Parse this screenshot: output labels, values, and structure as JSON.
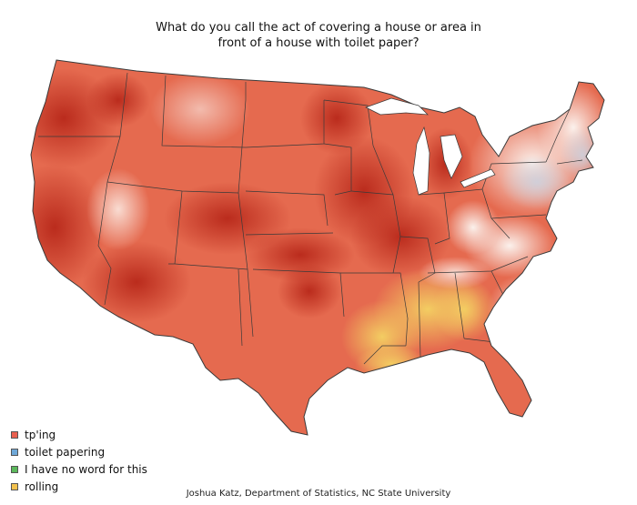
{
  "title": {
    "line1": "What do you call the act of covering a house or area in",
    "line2": "front of a house with toilet paper?"
  },
  "legend": {
    "items": [
      {
        "label": "tp'ing",
        "color": "#e8604f"
      },
      {
        "label": "toilet papering",
        "color": "#6fa8d8"
      },
      {
        "label": "I have no word for this",
        "color": "#5cb85c"
      },
      {
        "label": "rolling",
        "color": "#f2c14e"
      }
    ]
  },
  "credit": "Joshua Katz, Department of Statistics, NC State University",
  "colors": {
    "tping_strong": "#c8321f",
    "tping_medium": "#e46a4e",
    "tping_light": "#f3b7a4",
    "neutral": "#f7e6df",
    "rolling": "#f4d372",
    "toilet_papering": "#c9ccd8",
    "border": "#3a3a3a"
  }
}
